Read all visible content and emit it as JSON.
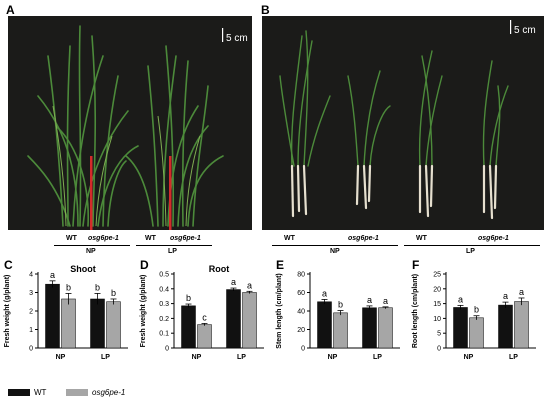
{
  "panel_letters": {
    "a": "A",
    "b": "B",
    "c": "C",
    "d": "D",
    "e": "E",
    "f": "F"
  },
  "scale_bar_label": "5 cm",
  "photo_a": {
    "group_labels": {
      "wt": "WT",
      "mutant": "osg6pe-1",
      "np": "NP",
      "lp": "LP"
    }
  },
  "photo_b": {
    "group_labels": {
      "wt_np": "WT",
      "mut_np": "osg6pe-1",
      "np": "NP",
      "wt_lp": "WT",
      "mut_lp": "osg6pe-1",
      "lp": "LP"
    }
  },
  "legend": {
    "wt": "WT",
    "mutant": "osg6pe-1"
  },
  "colors": {
    "wt": "#111111",
    "mutant": "#a6a6a6",
    "background_photo": "#1b1b19"
  },
  "chart_data": [
    {
      "type": "bar",
      "title": "Shoot",
      "ylabel": "Fresh weight (g/plant)",
      "categories": [
        "NP",
        "LP"
      ],
      "ylim": [
        0,
        4
      ],
      "yticks": [
        0,
        1,
        2,
        3,
        4
      ],
      "series": [
        {
          "name": "WT",
          "values": [
            3.45,
            2.65
          ],
          "errors": [
            0.18,
            0.3
          ],
          "letters": [
            "a",
            "b"
          ]
        },
        {
          "name": "osg6pe-1",
          "values": [
            2.65,
            2.5
          ],
          "errors": [
            0.3,
            0.15
          ],
          "letters": [
            "b",
            "b"
          ]
        }
      ]
    },
    {
      "type": "bar",
      "title": "Root",
      "ylabel": "Fresh weight (g/plant)",
      "categories": [
        "NP",
        "LP"
      ],
      "ylim": [
        0,
        0.5
      ],
      "yticks": [
        0.0,
        0.1,
        0.2,
        0.3,
        0.4,
        0.5
      ],
      "series": [
        {
          "name": "WT",
          "values": [
            0.285,
            0.395
          ],
          "errors": [
            0.012,
            0.01
          ],
          "letters": [
            "b",
            "a"
          ]
        },
        {
          "name": "osg6pe-1",
          "values": [
            0.158,
            0.375
          ],
          "errors": [
            0.008,
            0.008
          ],
          "letters": [
            "c",
            "a"
          ]
        }
      ]
    },
    {
      "type": "bar",
      "ylabel": "Stem length (cm/plant)",
      "categories": [
        "NP",
        "LP"
      ],
      "ylim": [
        0,
        80
      ],
      "yticks": [
        0,
        20,
        40,
        60,
        80
      ],
      "series": [
        {
          "name": "WT",
          "values": [
            50,
            43.5
          ],
          "errors": [
            2.5,
            2
          ],
          "letters": [
            "a",
            "a"
          ]
        },
        {
          "name": "osg6pe-1",
          "values": [
            38,
            43.5
          ],
          "errors": [
            2.5,
            1
          ],
          "letters": [
            "b",
            "a"
          ]
        }
      ]
    },
    {
      "type": "bar",
      "ylabel": "Root length (cm/plant)",
      "categories": [
        "NP",
        "LP"
      ],
      "ylim": [
        0,
        25
      ],
      "yticks": [
        0,
        5,
        10,
        15,
        20,
        25
      ],
      "series": [
        {
          "name": "WT",
          "values": [
            13.7,
            14.5
          ],
          "errors": [
            0.7,
            1.0
          ],
          "letters": [
            "a",
            "a"
          ]
        },
        {
          "name": "osg6pe-1",
          "values": [
            10.2,
            15.7
          ],
          "errors": [
            0.7,
            1.2
          ],
          "letters": [
            "b",
            "a"
          ]
        }
      ]
    }
  ]
}
